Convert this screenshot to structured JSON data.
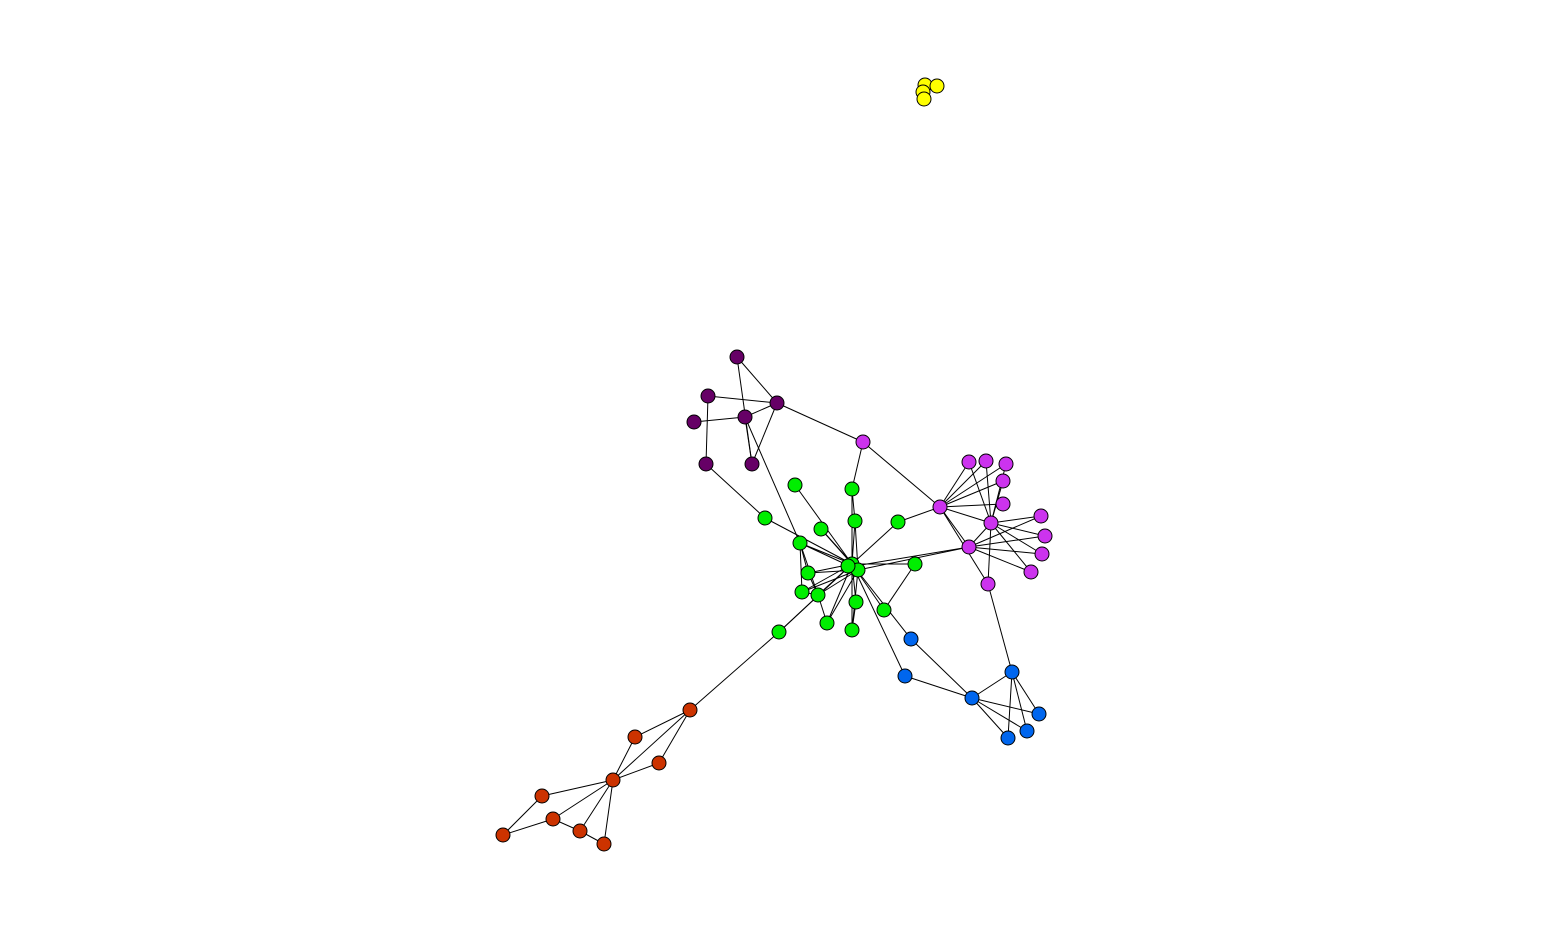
{
  "graph": {
    "directed": false,
    "labels_shown": false,
    "node_outline_color": "#000000",
    "edge_color": "#000000",
    "background_color": "#ffffff",
    "clusters": [
      {
        "id": "yellow",
        "color": "#ffff00",
        "node_count": 4
      },
      {
        "id": "dark-purple",
        "color": "#660066",
        "node_count": 7
      },
      {
        "id": "magenta",
        "color": "#cc33ee",
        "node_count": 14
      },
      {
        "id": "green",
        "color": "#00ee00",
        "node_count": 19
      },
      {
        "id": "blue",
        "color": "#0066ee",
        "node_count": 7
      },
      {
        "id": "orange-red",
        "color": "#cc3300",
        "node_count": 9
      }
    ]
  }
}
